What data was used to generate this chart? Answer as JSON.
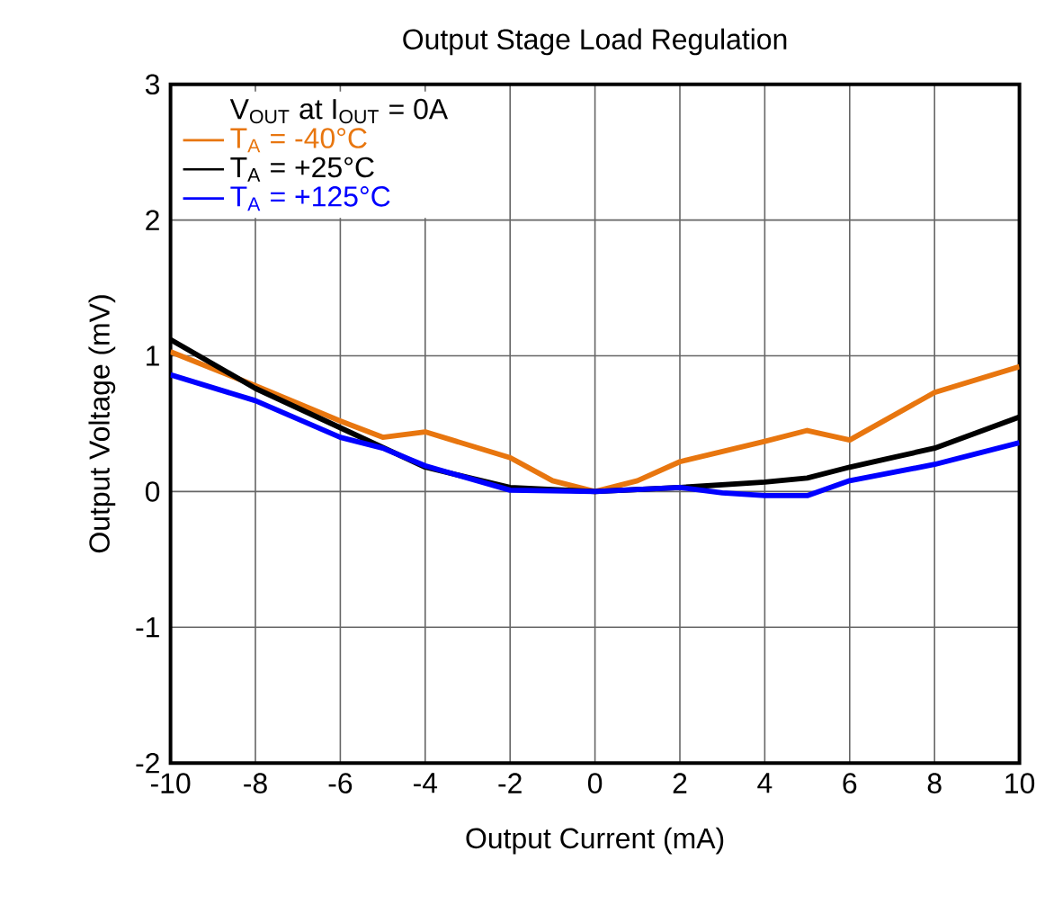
{
  "chart_data": {
    "type": "line",
    "title": "Output Stage Load Regulation",
    "xlabel": "Output Current (mA)",
    "ylabel": "Output Voltage (mV)",
    "legend_title": "V$_{OUT}$ at I$_{OUT}$ = 0A",
    "xlim": [
      -10,
      10
    ],
    "ylim": [
      -2,
      3
    ],
    "xticks": [
      -10,
      -8,
      -6,
      -4,
      -2,
      0,
      2,
      4,
      6,
      8,
      10
    ],
    "yticks": [
      -2,
      -1,
      0,
      1,
      2,
      3
    ],
    "grid": true,
    "legend": "top left",
    "line_style": "solid",
    "marker": "none",
    "series": [
      {
        "name": "T$_{A}$ = -40°C",
        "color": "#e8760f",
        "x": [
          -10,
          -8,
          -6,
          -5,
          -4,
          -2,
          -1,
          0,
          1,
          2,
          4,
          5,
          6,
          8,
          10
        ],
        "values": [
          1.03,
          0.78,
          0.52,
          0.4,
          0.44,
          0.25,
          0.08,
          0,
          0.08,
          0.22,
          0.37,
          0.45,
          0.38,
          0.73,
          0.92
        ]
      },
      {
        "name": "T$_{A}$ = +25°C",
        "color": "#000000",
        "x": [
          -10,
          -8,
          -6,
          -4,
          -2,
          0,
          2,
          4,
          5,
          6,
          8,
          10
        ],
        "values": [
          1.12,
          0.76,
          0.47,
          0.18,
          0.03,
          0,
          0.03,
          0.07,
          0.1,
          0.18,
          0.32,
          0.55
        ]
      },
      {
        "name": "T$_{A}$ = +125°C",
        "color": "#0000ff",
        "x": [
          -10,
          -8,
          -6,
          -5,
          -4,
          -2,
          0,
          2,
          3,
          4,
          5,
          6,
          8,
          10
        ],
        "values": [
          0.86,
          0.67,
          0.4,
          0.32,
          0.19,
          0.01,
          0,
          0.03,
          -0.01,
          -0.03,
          -0.03,
          0.08,
          0.2,
          0.36
        ]
      }
    ]
  }
}
